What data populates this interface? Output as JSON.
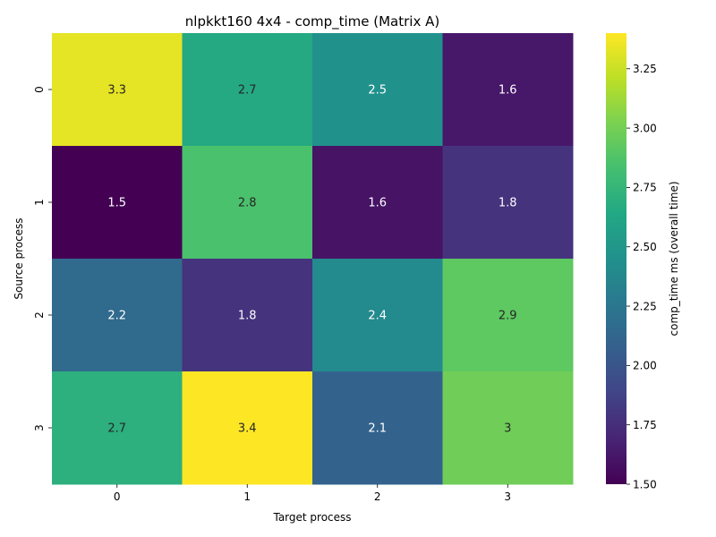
{
  "chart_data": {
    "type": "heatmap",
    "title": "nlpkkt160 4x4 - comp_time (Matrix A)",
    "xlabel": "Target process",
    "ylabel": "Source process",
    "x_categories": [
      "0",
      "1",
      "2",
      "3"
    ],
    "y_categories": [
      "0",
      "1",
      "2",
      "3"
    ],
    "values": [
      [
        3.33,
        2.65,
        2.45,
        1.62
      ],
      [
        1.5,
        2.85,
        1.6,
        1.78
      ],
      [
        2.15,
        1.78,
        2.4,
        2.92
      ],
      [
        2.7,
        3.4,
        2.1,
        2.98
      ]
    ],
    "annotations": [
      [
        "3.3",
        "2.7",
        "2.5",
        "1.6"
      ],
      [
        "1.5",
        "2.8",
        "1.6",
        "1.8"
      ],
      [
        "2.2",
        "1.8",
        "2.4",
        "2.9"
      ],
      [
        "2.7",
        "3.4",
        "2.1",
        "3"
      ]
    ],
    "colormap": "viridis",
    "color_range": [
      1.5,
      3.4
    ],
    "colorbar": {
      "label": "comp_time ms (overall time)",
      "ticks": [
        1.5,
        1.75,
        2.0,
        2.25,
        2.5,
        2.75,
        3.0,
        3.25
      ],
      "tick_labels": [
        "1.50",
        "1.75",
        "2.00",
        "2.25",
        "2.50",
        "2.75",
        "3.00",
        "3.25"
      ]
    },
    "grid": false
  }
}
